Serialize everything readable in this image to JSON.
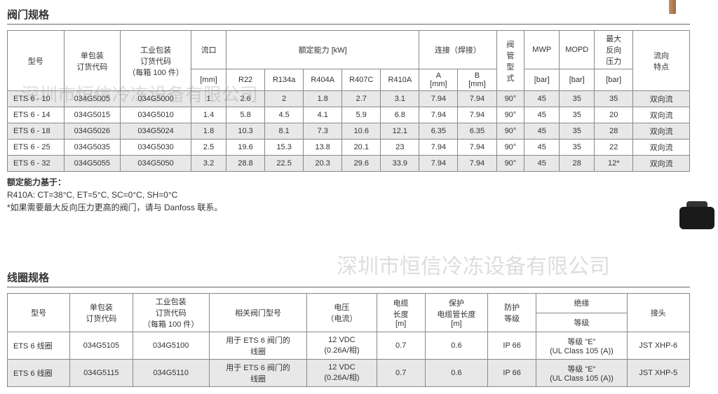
{
  "sections": {
    "valve": {
      "title": "阀门规格"
    },
    "coil": {
      "title": "线圈规格"
    }
  },
  "valve_table": {
    "headers": {
      "model": "型号",
      "single_pack": "单包装\n订货代码",
      "industrial_pack": "工业包装\n订货代码\n（每箱 100 件）",
      "port": "流口",
      "rated_capacity": "额定能力 [kW]",
      "connection": "连接（焊接）",
      "valve_type": "阀\n管\n型\n式",
      "mwp": "MWP",
      "mopd": "MOPD",
      "max_reverse": "最大\n反向\n压力",
      "flow_char": "流向\n特点",
      "mm": "[mm]",
      "r22": "R22",
      "r134a": "R134a",
      "r404a": "R404A",
      "r407c": "R407C",
      "r410a": "R410A",
      "a_mm": "A\n[mm]",
      "b_mm": "B\n[mm]",
      "bar": "[bar]"
    },
    "rows": [
      {
        "model": "ETS 6 - 10",
        "sp": "034G5005",
        "ip": "034G5000",
        "mm": "1",
        "r22": "2.6",
        "r134a": "2",
        "r404a": "1.8",
        "r407c": "2.7",
        "r410a": "3.1",
        "a": "7.94",
        "b": "7.94",
        "vt": "90°",
        "mwp": "45",
        "mopd": "35",
        "mr": "35",
        "fc": "双向流"
      },
      {
        "model": "ETS 6 - 14",
        "sp": "034G5015",
        "ip": "034G5010",
        "mm": "1.4",
        "r22": "5.8",
        "r134a": "4.5",
        "r404a": "4.1",
        "r407c": "5.9",
        "r410a": "6.8",
        "a": "7.94",
        "b": "7.94",
        "vt": "90°",
        "mwp": "45",
        "mopd": "35",
        "mr": "20",
        "fc": "双向流"
      },
      {
        "model": "ETS 6 - 18",
        "sp": "034G5026",
        "ip": "034G5024",
        "mm": "1.8",
        "r22": "10.3",
        "r134a": "8.1",
        "r404a": "7.3",
        "r407c": "10.6",
        "r410a": "12.1",
        "a": "6.35",
        "b": "6.35",
        "vt": "90°",
        "mwp": "45",
        "mopd": "35",
        "mr": "28",
        "fc": "双向流"
      },
      {
        "model": "ETS 6 - 25",
        "sp": "034G5035",
        "ip": "034G5030",
        "mm": "2.5",
        "r22": "19.6",
        "r134a": "15.3",
        "r404a": "13.8",
        "r407c": "20.1",
        "r410a": "23",
        "a": "7.94",
        "b": "7.94",
        "vt": "90°",
        "mwp": "45",
        "mopd": "35",
        "mr": "22",
        "fc": "双向流"
      },
      {
        "model": "ETS 6 - 32",
        "sp": "034G5055",
        "ip": "034G5050",
        "mm": "3.2",
        "r22": "28.8",
        "r134a": "22.5",
        "r404a": "20.3",
        "r407c": "29.6",
        "r410a": "33.9",
        "a": "7.94",
        "b": "7.94",
        "vt": "90°",
        "mwp": "45",
        "mopd": "28",
        "mr": "12*",
        "fc": "双向流"
      }
    ]
  },
  "notes": {
    "line1": "额定能力基于：",
    "line2": "R410A: CT=38°C, ET=5°C, SC=0°C, SH=0°C",
    "line3": "*如果需要最大反向压力更高的阀门，请与 Danfoss 联系。"
  },
  "coil_table": {
    "headers": {
      "model": "型号",
      "single_pack": "单包装\n订货代码",
      "industrial_pack": "工业包装\n订货代码\n（每箱 100 件）",
      "related_valve": "相关阀门型号",
      "voltage": "电压\n（电流）",
      "cable_len": "电缆\n长度\n[m]",
      "protect_len": "保护\n电缆管长度\n[m]",
      "protect_class": "防护\n等级",
      "insulation": "绝缘",
      "class": "等级",
      "connector": "接头"
    },
    "rows": [
      {
        "model": "ETS 6 线圈",
        "sp": "034G5105",
        "ip": "034G5100",
        "rv": "用于 ETS 6 阀门的\n线圈",
        "volt": "12 VDC\n(0.26A/相)",
        "cl": "0.7",
        "pl": "0.6",
        "pc": "IP 66",
        "ins": "等级 \"E\"\n(UL Class 105 (A))",
        "conn": "JST XHP-6"
      },
      {
        "model": "ETS 6 线圈",
        "sp": "034G5115",
        "ip": "034G5110",
        "rv": "用于 ETS 6 阀门的\n线圈",
        "volt": "12 VDC\n(0.26A/相)",
        "cl": "0.7",
        "pl": "0.6",
        "pc": "IP 66",
        "ins": "等级 \"E\"\n(UL Class 105 (A))",
        "conn": "JST XHP-5"
      }
    ]
  },
  "watermarks": {
    "top": "深圳市恒信冷冻设备有限公司",
    "bottom": "深圳市恒信冷冻设备有限公司"
  }
}
